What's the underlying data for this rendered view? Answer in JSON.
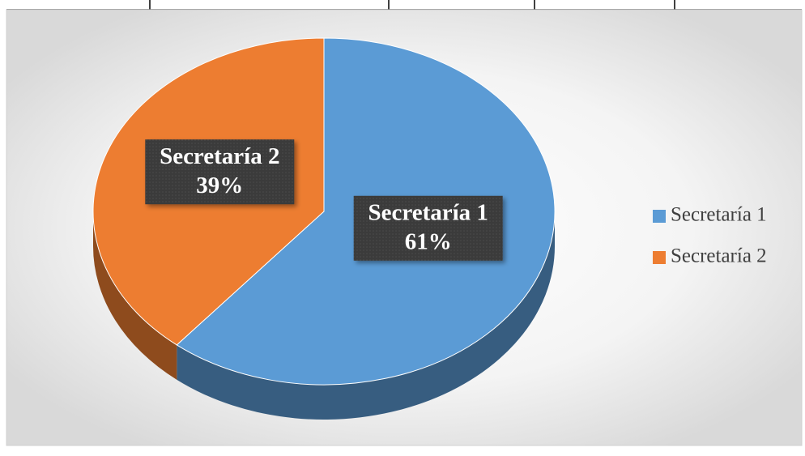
{
  "chart_data": {
    "type": "pie",
    "categories": [
      "Secretaría 1",
      "Secretaría 2"
    ],
    "values": [
      61,
      39
    ],
    "value_labels": [
      "61%",
      "39%"
    ],
    "colors": [
      "#5b9bd5",
      "#ed7d31"
    ],
    "legend": "right"
  }
}
